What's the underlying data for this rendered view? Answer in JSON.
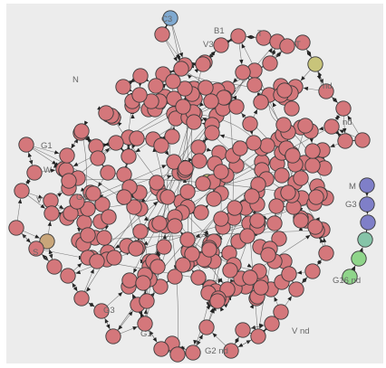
{
  "graph": {
    "colors": {
      "background": "#ececec",
      "edge": "#555555",
      "node_default": "#d4777b",
      "node_stroke": "#3a3a3a",
      "node_blue": "#7fa9d0",
      "node_olive": "#c8c47a",
      "node_tan": "#c9a67a",
      "node_purple": "#7f7fc8",
      "node_teal": "#86c4a8",
      "node_green": "#8fd58a"
    },
    "labeled_nodes": [
      {
        "id": "n_c3",
        "text": "C3"
      },
      {
        "id": "n_b1",
        "text": "B1"
      },
      {
        "id": "n_v3",
        "text": "V3"
      },
      {
        "id": "n_t1",
        "text": "T"
      },
      {
        "id": "n_t2",
        "text": "T"
      },
      {
        "id": "n_nd1",
        "text": "nd"
      },
      {
        "id": "n_nd2",
        "text": "nd"
      },
      {
        "id": "n_g1",
        "text": "G1"
      },
      {
        "id": "n_m1",
        "text": "M"
      },
      {
        "id": "n_g3",
        "text": "G3"
      },
      {
        "id": "n_s1",
        "text": "S"
      },
      {
        "id": "n_v1",
        "text": "V"
      },
      {
        "id": "n_g1b",
        "text": "G1"
      },
      {
        "id": "n_g1nd",
        "text": "G16 nd"
      },
      {
        "id": "n_v3nd",
        "text": "V nd"
      },
      {
        "id": "n_g2nd",
        "text": "G2 nd"
      },
      {
        "id": "n_g1c",
        "text": "G1"
      },
      {
        "id": "n_g3b",
        "text": "G3"
      },
      {
        "id": "n_n1",
        "text": "N"
      },
      {
        "id": "n_w1",
        "text": "W"
      }
    ]
  }
}
